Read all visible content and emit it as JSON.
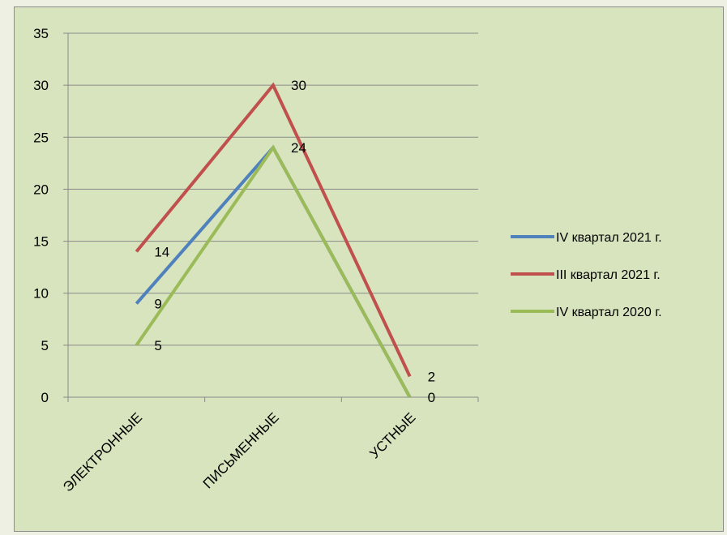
{
  "chart_data": {
    "type": "line",
    "title": "",
    "xlabel": "",
    "ylabel": "",
    "categories": [
      "ЭЛЕКТРОННЫЕ",
      "ПИСЬМЕННЫЕ",
      "УСТНЫЕ"
    ],
    "ylim": [
      0,
      35
    ],
    "yticks": [
      0,
      5,
      10,
      15,
      20,
      25,
      30,
      35
    ],
    "grid": true,
    "legend_position": "right",
    "series": [
      {
        "name": "IV квартал 2021 г.",
        "values": [
          9,
          24,
          0
        ],
        "color": "#4f81bd",
        "labels": [
          "9",
          "",
          ""
        ]
      },
      {
        "name": "III квартал 2021 г.",
        "values": [
          14,
          30,
          2
        ],
        "color": "#c0504d",
        "labels": [
          "14",
          "30",
          "2"
        ]
      },
      {
        "name": "IV квартал 2020 г.",
        "values": [
          5,
          24,
          0
        ],
        "color": "#9bbb59",
        "labels": [
          "5",
          "24",
          "0"
        ]
      }
    ]
  }
}
